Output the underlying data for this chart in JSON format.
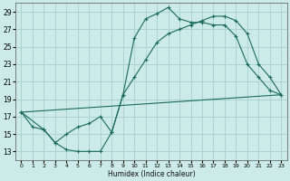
{
  "xlabel": "Humidex (Indice chaleur)",
  "background_color": "#cceae7",
  "grid_color": "#aad4d0",
  "line_color": "#1a6b5a",
  "xlim": [
    -0.5,
    23.5
  ],
  "ylim": [
    12,
    30
  ],
  "xticks": [
    0,
    1,
    2,
    3,
    4,
    5,
    6,
    7,
    8,
    9,
    10,
    11,
    12,
    13,
    14,
    15,
    16,
    17,
    18,
    19,
    20,
    21,
    22,
    23
  ],
  "yticks": [
    13,
    15,
    17,
    19,
    21,
    23,
    25,
    27,
    29
  ],
  "series1_x": [
    0,
    1,
    2,
    3,
    4,
    5,
    6,
    7,
    8,
    9,
    10,
    11,
    12,
    13,
    14,
    15,
    16,
    17,
    18,
    19,
    20,
    21,
    22,
    23
  ],
  "series1_y": [
    17.5,
    15.8,
    15.5,
    14.0,
    13.2,
    13.0,
    13.0,
    13.0,
    15.2,
    19.5,
    26.0,
    28.2,
    28.8,
    29.5,
    28.2,
    27.8,
    27.8,
    27.5,
    27.5,
    26.2,
    23.0,
    21.5,
    20.0,
    19.5
  ],
  "series2_x": [
    0,
    2,
    3,
    4,
    5,
    6,
    7,
    8,
    9,
    10,
    11,
    12,
    13,
    14,
    15,
    16,
    17,
    18,
    19,
    20,
    21,
    22,
    23
  ],
  "series2_y": [
    17.5,
    15.5,
    14.0,
    15.0,
    15.8,
    16.2,
    17.0,
    15.2,
    19.5,
    21.5,
    23.5,
    25.5,
    26.5,
    27.0,
    27.5,
    28.0,
    28.5,
    28.5,
    28.0,
    26.5,
    23.0,
    21.5,
    19.5
  ],
  "series3_x": [
    0,
    23
  ],
  "series3_y": [
    17.5,
    19.5
  ]
}
